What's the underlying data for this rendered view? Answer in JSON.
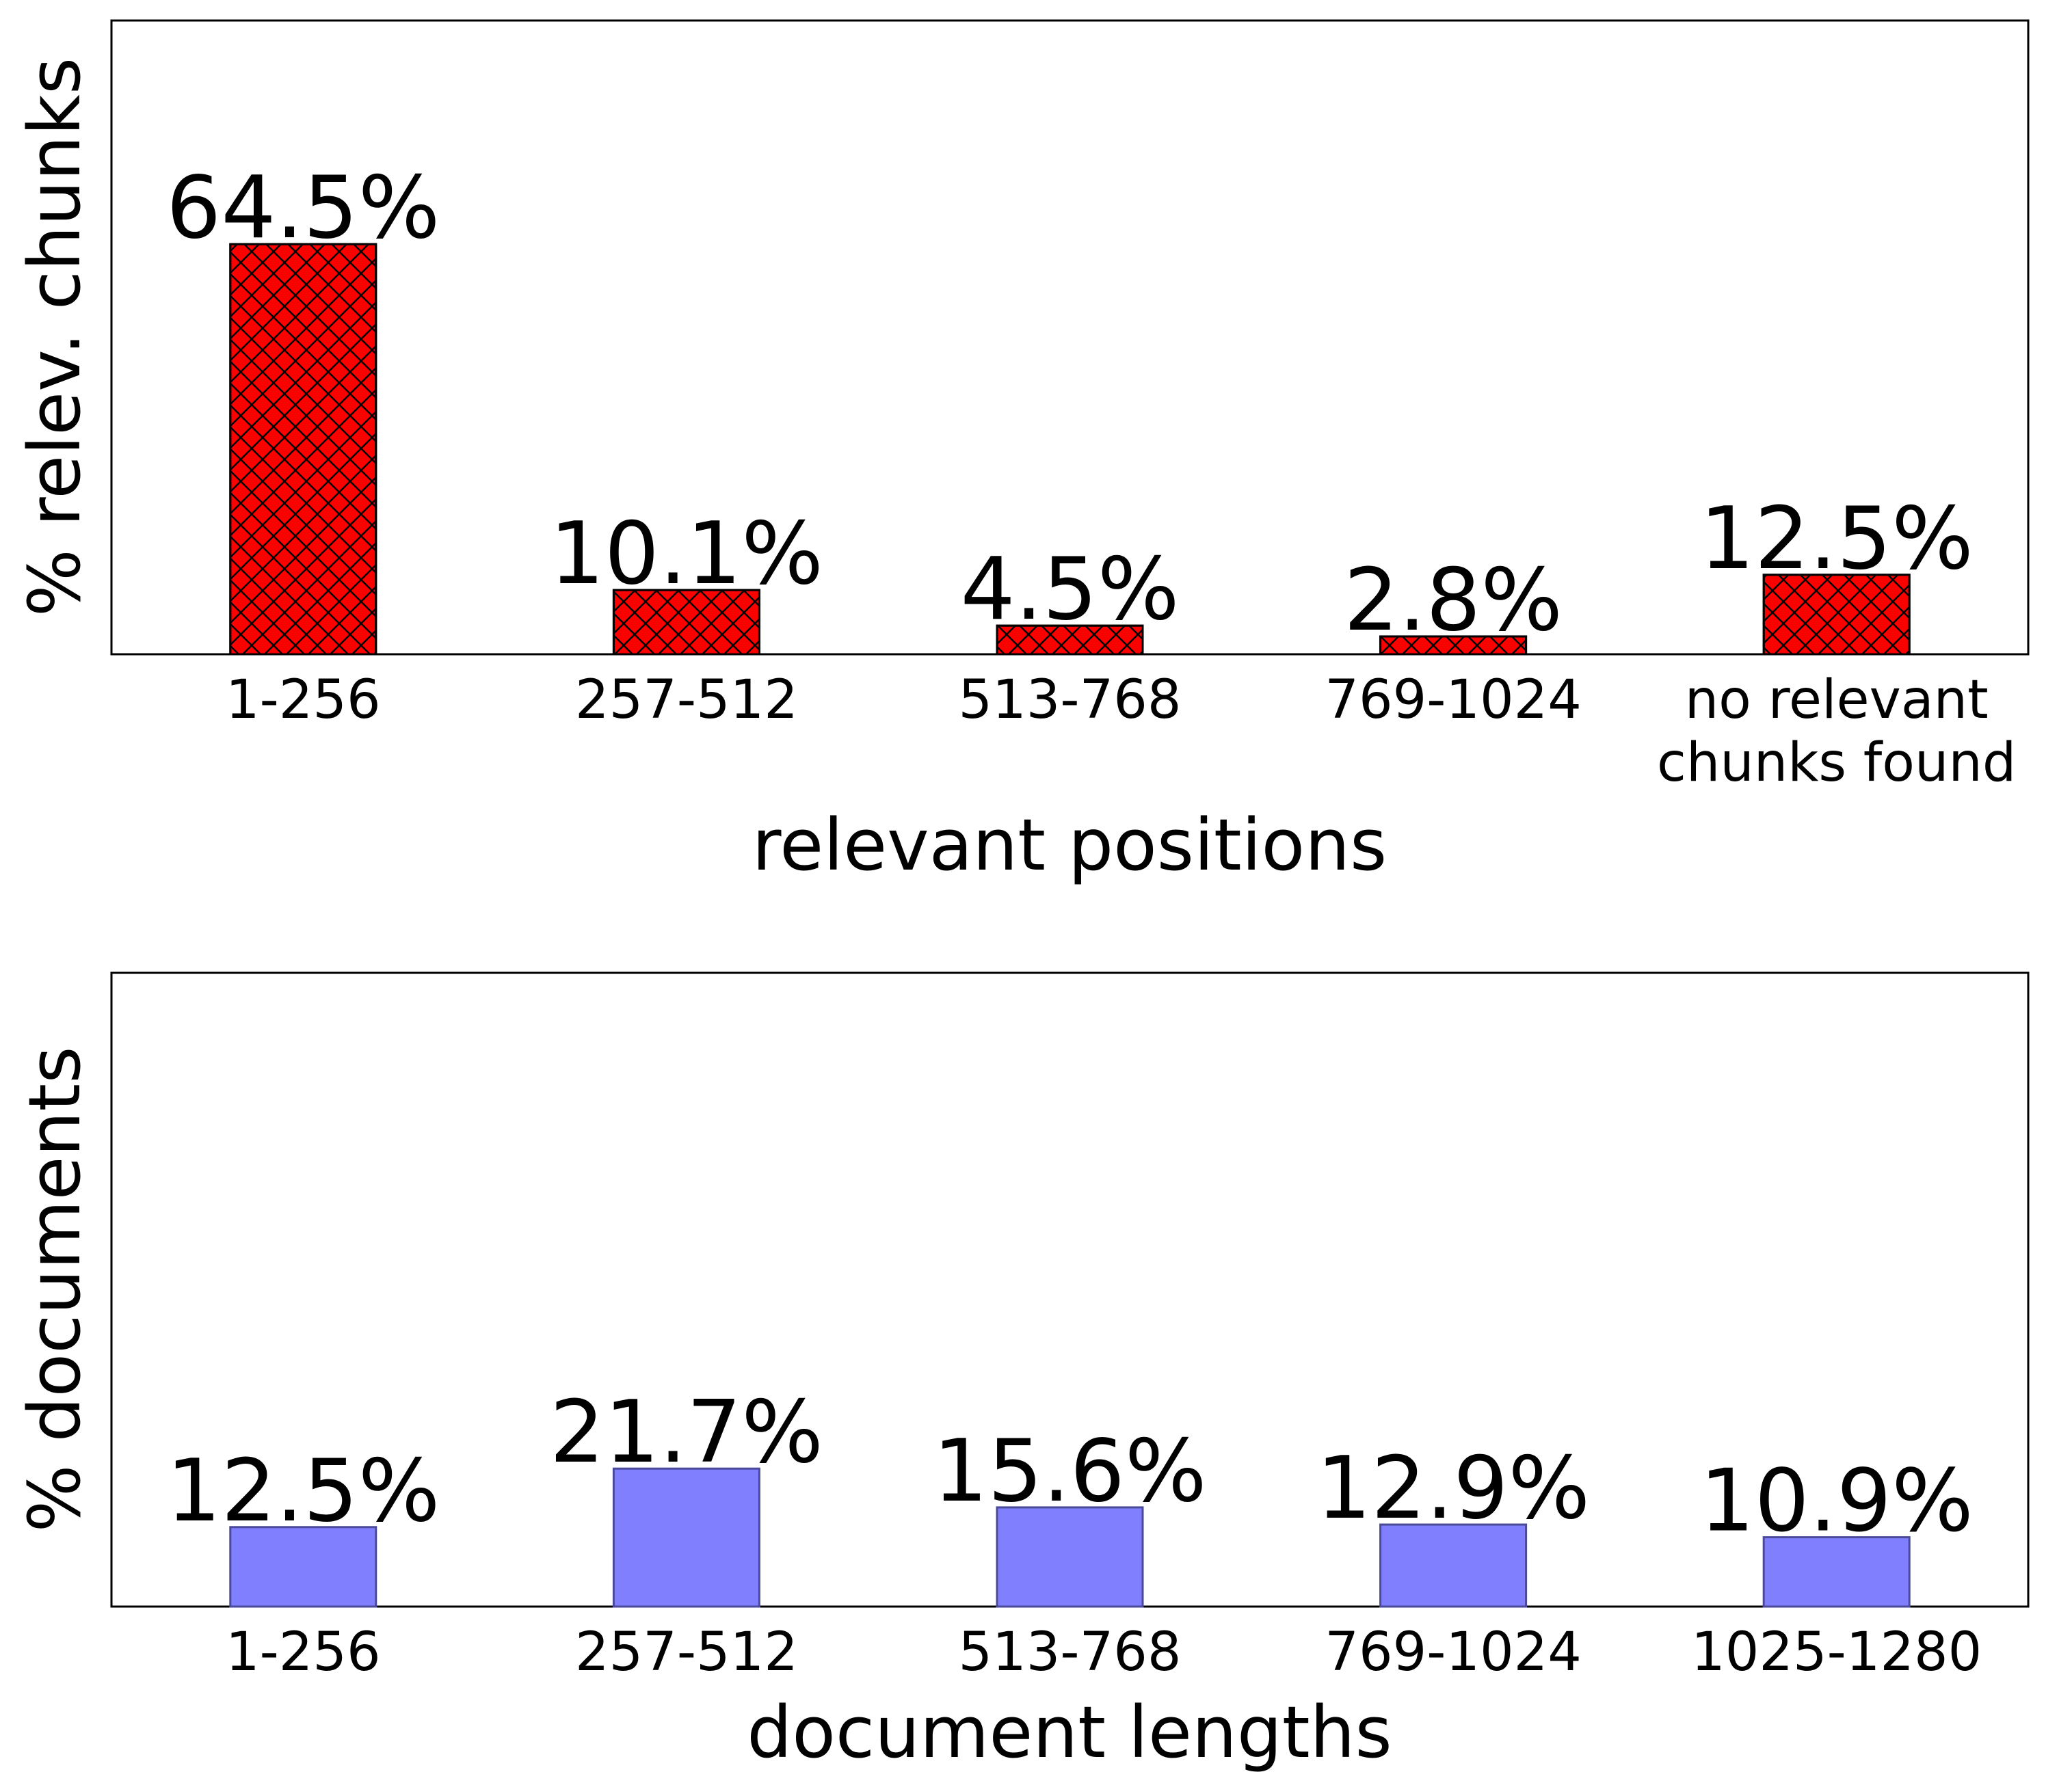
{
  "chart_data": [
    {
      "type": "bar",
      "categories": [
        "1-256",
        "257-512",
        "513-768",
        "769-1024",
        "no relevant\nchunks found"
      ],
      "values": [
        64.5,
        10.1,
        4.5,
        2.8,
        12.5
      ],
      "value_labels": [
        "64.5%",
        "10.1%",
        "4.5%",
        "2.8%",
        "12.5%"
      ],
      "xlabel": "relevant positions",
      "ylabel": "% relev. chunks",
      "ylim": [
        0,
        100
      ],
      "y_ticks_shown": false,
      "bar_color": "#ff0000",
      "bar_edge_color": "#000000",
      "bar_hatch": "crosshatch",
      "grid": false
    },
    {
      "type": "bar",
      "categories": [
        "1-256",
        "257-512",
        "513-768",
        "769-1024",
        "1025-1280"
      ],
      "values": [
        12.5,
        21.7,
        15.6,
        12.9,
        10.9
      ],
      "value_labels": [
        "12.5%",
        "21.7%",
        "15.6%",
        "12.9%",
        "10.9%"
      ],
      "xlabel": "document lengths",
      "ylabel": "% documents",
      "ylim": [
        0,
        100
      ],
      "y_ticks_shown": false,
      "bar_color": "#8080ff",
      "bar_edge_color": "#4a4a99",
      "bar_hatch": "none",
      "grid": false
    }
  ]
}
